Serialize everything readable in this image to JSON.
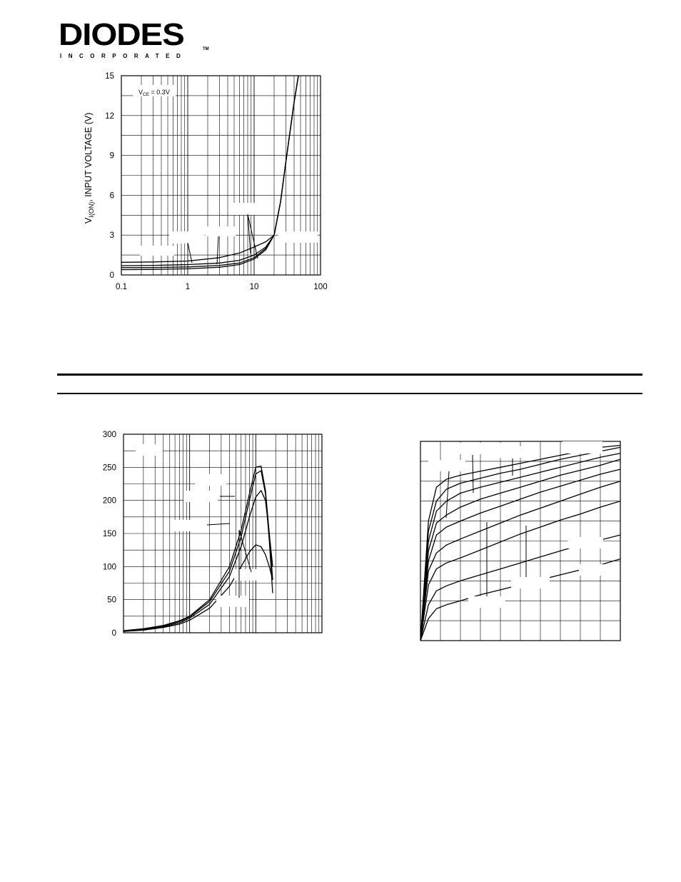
{
  "logo": {
    "wordmark": "DIODES",
    "subline": "INCORPORATED",
    "tm": "TM"
  },
  "chart_data": [
    {
      "type": "line",
      "x_scale": "log",
      "xlim": [
        0.1,
        100
      ],
      "ylim": [
        0,
        15
      ],
      "x_ticks": [
        "0.1",
        "1",
        "10",
        "100"
      ],
      "y_ticks": [
        "0",
        "3",
        "6",
        "9",
        "12",
        "15"
      ],
      "ylabel_main": "V",
      "ylabel_sub": "I(ON)",
      "ylabel_rest": ", INPUT VOLTAGE (V)",
      "annotation_main": "V",
      "annotation_sub": "CE",
      "annotation_rest": " = 0.3V",
      "grid": true,
      "series": [
        {
          "x": [
            0.1,
            0.3,
            1,
            3,
            6,
            10,
            15,
            20,
            25,
            30,
            40,
            50
          ],
          "y": [
            0.95,
            0.98,
            1.05,
            1.3,
            1.65,
            2.1,
            2.5,
            3.0,
            5.5,
            8.5,
            13.0,
            16.0
          ]
        },
        {
          "x": [
            0.1,
            0.3,
            1,
            3,
            6,
            10,
            15,
            20,
            25,
            30,
            40,
            50
          ],
          "y": [
            0.7,
            0.72,
            0.78,
            0.9,
            1.1,
            1.5,
            2.1,
            3.0,
            5.5,
            8.5,
            13.0,
            16.0
          ]
        },
        {
          "x": [
            0.1,
            0.3,
            1,
            3,
            6,
            10,
            15,
            20,
            25,
            30,
            40,
            50
          ],
          "y": [
            0.55,
            0.56,
            0.6,
            0.72,
            0.9,
            1.3,
            2.0,
            3.0,
            5.5,
            8.5,
            13.0,
            16.0
          ]
        },
        {
          "x": [
            0.1,
            0.3,
            1,
            3,
            6,
            10,
            15,
            20,
            25,
            30,
            40,
            50
          ],
          "y": [
            0.4,
            0.42,
            0.46,
            0.58,
            0.78,
            1.2,
            1.9,
            3.0,
            5.5,
            8.5,
            13.0,
            16.0
          ]
        }
      ]
    },
    {
      "type": "line",
      "x_scale": "log",
      "xlim": [
        0.1,
        100
      ],
      "ylim": [
        0,
        300
      ],
      "y_ticks": [
        "0",
        "50",
        "100",
        "150",
        "200",
        "250",
        "300"
      ],
      "grid": true,
      "series": [
        {
          "x": [
            0.1,
            0.2,
            0.4,
            0.7,
            1,
            2,
            4,
            6,
            8,
            10,
            12,
            14,
            16,
            18
          ],
          "y": [
            3,
            6,
            11,
            18,
            25,
            50,
            100,
            155,
            210,
            250,
            252,
            215,
            150,
            100
          ]
        },
        {
          "x": [
            0.1,
            0.2,
            0.4,
            0.7,
            1,
            2,
            4,
            6,
            8,
            10,
            12,
            14,
            16,
            18
          ],
          "y": [
            3,
            6,
            10,
            17,
            24,
            47,
            93,
            145,
            200,
            240,
            245,
            210,
            140,
            60
          ]
        },
        {
          "x": [
            0.1,
            0.2,
            0.4,
            0.7,
            1,
            2,
            4,
            6,
            8,
            10,
            12,
            14,
            16,
            18
          ],
          "y": [
            2,
            5,
            9,
            15,
            22,
            43,
            85,
            130,
            175,
            205,
            215,
            200,
            150,
            80
          ]
        },
        {
          "x": [
            0.1,
            0.2,
            0.4,
            0.7,
            1,
            2,
            4,
            6,
            8,
            10,
            12,
            14,
            16,
            18
          ],
          "y": [
            2,
            4,
            8,
            13,
            19,
            37,
            70,
            100,
            122,
            133,
            130,
            118,
            100,
            80
          ]
        }
      ]
    },
    {
      "type": "line",
      "x_scale": "linear",
      "xlim": [
        0,
        10
      ],
      "ylim": [
        0,
        10
      ],
      "grid": true,
      "series": [
        {
          "x": [
            0,
            0.4,
            0.8,
            1.3,
            2,
            3,
            4,
            5,
            6,
            7,
            8,
            9,
            10
          ],
          "y": [
            0,
            6.0,
            7.7,
            8.1,
            8.3,
            8.5,
            8.7,
            8.9,
            9.1,
            9.3,
            9.5,
            9.7,
            9.8
          ]
        },
        {
          "x": [
            0,
            0.4,
            0.8,
            1.3,
            2,
            3,
            4,
            5,
            6,
            7,
            8,
            9,
            10
          ],
          "y": [
            0,
            5.5,
            7.0,
            7.6,
            7.9,
            8.15,
            8.4,
            8.6,
            8.85,
            9.1,
            9.3,
            9.5,
            9.7
          ]
        },
        {
          "x": [
            0,
            0.4,
            0.8,
            1.3,
            2,
            3,
            4,
            5,
            6,
            7,
            8,
            9,
            10
          ],
          "y": [
            0,
            5.0,
            6.5,
            7.0,
            7.4,
            7.7,
            7.95,
            8.2,
            8.45,
            8.7,
            8.95,
            9.2,
            9.4
          ]
        },
        {
          "x": [
            0,
            0.4,
            0.8,
            1.3,
            2,
            3,
            4,
            5,
            6,
            7,
            8,
            9,
            10
          ],
          "y": [
            0,
            4.5,
            5.9,
            6.3,
            6.7,
            7.1,
            7.4,
            7.7,
            8.0,
            8.3,
            8.55,
            8.8,
            9.1
          ]
        },
        {
          "x": [
            0,
            0.4,
            0.8,
            1.3,
            2,
            3,
            4,
            5,
            6,
            7,
            8,
            9,
            10
          ],
          "y": [
            0,
            4.0,
            5.3,
            5.7,
            6.0,
            6.4,
            6.75,
            7.1,
            7.45,
            7.75,
            8.05,
            8.35,
            8.6
          ]
        },
        {
          "x": [
            0,
            0.4,
            0.8,
            1.3,
            2,
            3,
            4,
            5,
            6,
            7,
            8,
            9,
            10
          ],
          "y": [
            0,
            3.5,
            4.4,
            4.8,
            5.1,
            5.5,
            5.9,
            6.3,
            6.65,
            7.0,
            7.35,
            7.7,
            8.0
          ]
        },
        {
          "x": [
            0,
            0.4,
            0.8,
            1.3,
            2,
            3,
            4,
            5,
            6,
            7,
            8,
            9,
            10
          ],
          "y": [
            0,
            2.8,
            3.6,
            3.9,
            4.15,
            4.55,
            4.95,
            5.35,
            5.7,
            6.05,
            6.35,
            6.7,
            7.0
          ]
        },
        {
          "x": [
            0,
            0.4,
            0.8,
            1.3,
            2,
            3,
            4,
            5,
            6,
            7,
            8,
            9,
            10
          ],
          "y": [
            0,
            1.8,
            2.5,
            2.75,
            3.0,
            3.3,
            3.6,
            3.9,
            4.2,
            4.5,
            4.8,
            5.05,
            5.3
          ]
        },
        {
          "x": [
            0,
            0.4,
            0.8,
            1.3,
            2,
            3,
            4,
            5,
            6,
            7,
            8,
            9,
            10
          ],
          "y": [
            0,
            1.1,
            1.6,
            1.8,
            2.0,
            2.3,
            2.55,
            2.8,
            3.05,
            3.3,
            3.55,
            3.8,
            4.1
          ]
        }
      ]
    }
  ]
}
